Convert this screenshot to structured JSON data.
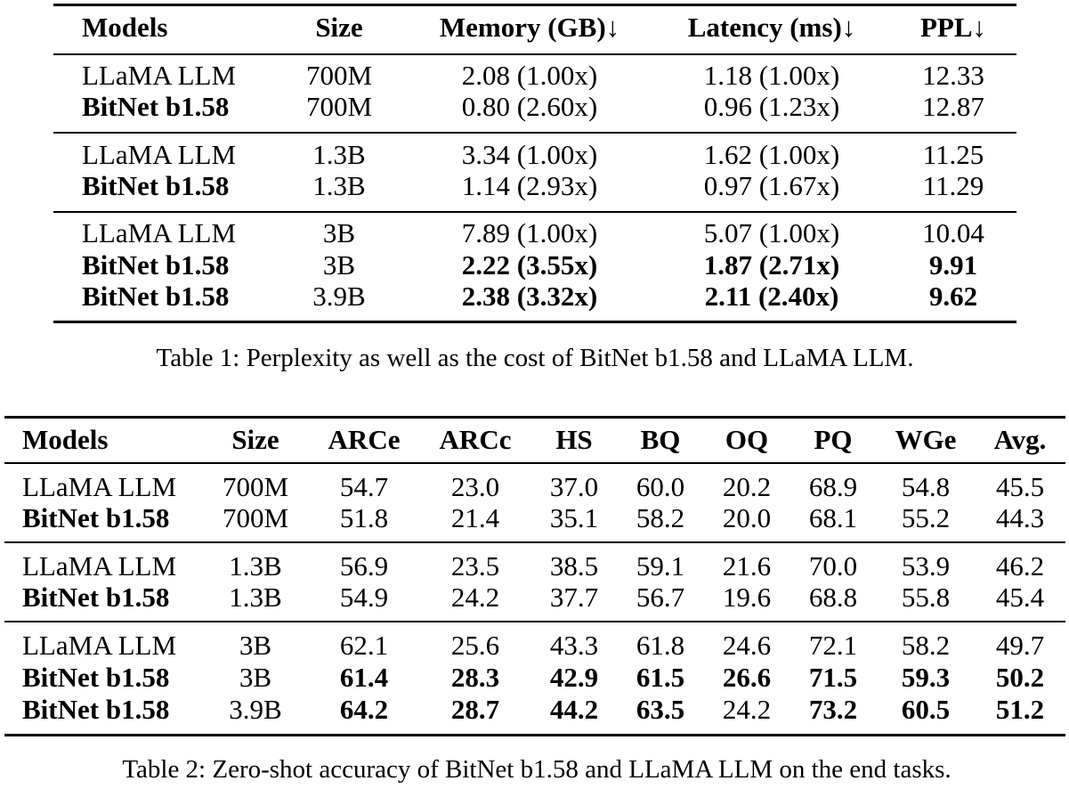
{
  "table1": {
    "headers": [
      "Models",
      "Size",
      "Memory (GB)↓",
      "Latency (ms)↓",
      "PPL↓"
    ],
    "groups": [
      [
        {
          "model": "LLaMA LLM",
          "size": "700M",
          "memory": "2.08 (1.00x)",
          "latency": "1.18 (1.00x)",
          "ppl": "12.33"
        },
        {
          "model": "BitNet b1.58",
          "size": "700M",
          "memory": "0.80 (2.60x)",
          "latency": "0.96 (1.23x)",
          "ppl": "12.87"
        }
      ],
      [
        {
          "model": "LLaMA LLM",
          "size": "1.3B",
          "memory": "3.34 (1.00x)",
          "latency": "1.62 (1.00x)",
          "ppl": "11.25"
        },
        {
          "model": "BitNet b1.58",
          "size": "1.3B",
          "memory": "1.14 (2.93x)",
          "latency": "0.97 (1.67x)",
          "ppl": "11.29"
        }
      ],
      [
        {
          "model": "LLaMA LLM",
          "size": "3B",
          "memory": "7.89 (1.00x)",
          "latency": "5.07 (1.00x)",
          "ppl": "10.04"
        },
        {
          "model": "BitNet b1.58",
          "size": "3B",
          "memory": "2.22 (3.55x)",
          "latency": "1.87 (2.71x)",
          "ppl": "9.91"
        },
        {
          "model": "BitNet b1.58",
          "size": "3.9B",
          "memory": "2.38 (3.32x)",
          "latency": "2.11 (2.40x)",
          "ppl": "9.62"
        }
      ]
    ],
    "caption": "Table 1: Perplexity as well as the cost of BitNet b1.58 and LLaMA LLM."
  },
  "table2": {
    "headers": [
      "Models",
      "Size",
      "ARCe",
      "ARCc",
      "HS",
      "BQ",
      "OQ",
      "PQ",
      "WGe",
      "Avg."
    ],
    "groups": [
      [
        [
          "LLaMA LLM",
          "700M",
          "54.7",
          "23.0",
          "37.0",
          "60.0",
          "20.2",
          "68.9",
          "54.8",
          "45.5"
        ],
        [
          "BitNet b1.58",
          "700M",
          "51.8",
          "21.4",
          "35.1",
          "58.2",
          "20.0",
          "68.1",
          "55.2",
          "44.3"
        ]
      ],
      [
        [
          "LLaMA LLM",
          "1.3B",
          "56.9",
          "23.5",
          "38.5",
          "59.1",
          "21.6",
          "70.0",
          "53.9",
          "46.2"
        ],
        [
          "BitNet b1.58",
          "1.3B",
          "54.9",
          "24.2",
          "37.7",
          "56.7",
          "19.6",
          "68.8",
          "55.8",
          "45.4"
        ]
      ],
      [
        [
          "LLaMA LLM",
          "3B",
          "62.1",
          "25.6",
          "43.3",
          "61.8",
          "24.6",
          "72.1",
          "58.2",
          "49.7"
        ],
        [
          "BitNet b1.58",
          "3B",
          "61.4",
          "28.3",
          "42.9",
          "61.5",
          "26.6",
          "71.5",
          "59.3",
          "50.2"
        ],
        [
          "BitNet b1.58",
          "3.9B",
          "64.2",
          "28.7",
          "44.2",
          "63.5",
          "24.2",
          "73.2",
          "60.5",
          "51.2"
        ]
      ]
    ],
    "caption": "Table 2: Zero-shot accuracy of BitNet b1.58 and LLaMA LLM on the end tasks."
  }
}
